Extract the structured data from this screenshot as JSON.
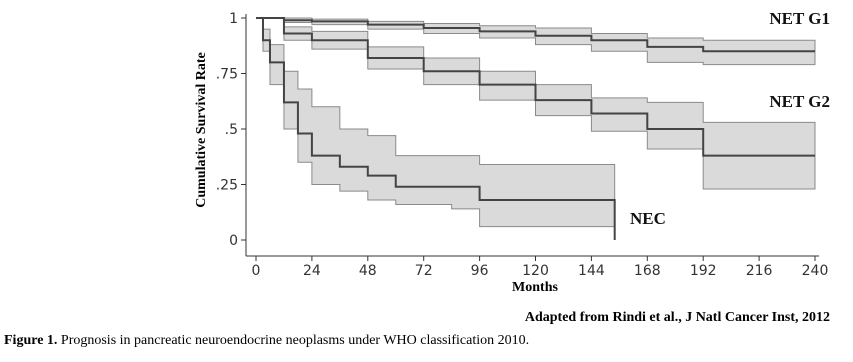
{
  "chart_data": {
    "type": "line",
    "step": "post",
    "ylabel": "Cumulative Survival Rate",
    "xlabel": "Months",
    "source": "Adapted from Rindi et al., J Natl Cancer Inst, 2012",
    "xlim": [
      0,
      240
    ],
    "ylim": [
      0,
      1
    ],
    "xticks": [
      0,
      24,
      48,
      72,
      96,
      120,
      144,
      168,
      192,
      216,
      240
    ],
    "yticks": [
      0,
      {
        "value": 0.25,
        "label": ".25"
      },
      {
        "value": 0.5,
        "label": ".5"
      },
      {
        "value": 0.75,
        "label": ".75"
      },
      1
    ],
    "band_color": "#d4d4d4",
    "series": [
      {
        "name": "NET G1",
        "color": "#444444",
        "x": [
          0,
          12,
          24,
          48,
          72,
          96,
          120,
          144,
          168,
          192,
          240
        ],
        "values": [
          1,
          0.99,
          0.985,
          0.97,
          0.955,
          0.94,
          0.92,
          0.9,
          0.87,
          0.85,
          0.85
        ],
        "lower": [
          1,
          0.98,
          0.97,
          0.95,
          0.93,
          0.91,
          0.88,
          0.85,
          0.8,
          0.79,
          0.79
        ],
        "upper": [
          1,
          1,
          0.995,
          0.985,
          0.975,
          0.965,
          0.955,
          0.93,
          0.91,
          0.9,
          0.9
        ]
      },
      {
        "name": "NET G2",
        "color": "#444444",
        "x": [
          0,
          12,
          24,
          48,
          72,
          96,
          120,
          144,
          168,
          192,
          240
        ],
        "values": [
          1,
          0.93,
          0.9,
          0.82,
          0.76,
          0.7,
          0.63,
          0.57,
          0.5,
          0.38,
          0.38
        ],
        "lower": [
          1,
          0.9,
          0.86,
          0.77,
          0.7,
          0.63,
          0.56,
          0.49,
          0.41,
          0.23,
          0.23
        ],
        "upper": [
          1,
          0.96,
          0.94,
          0.87,
          0.82,
          0.76,
          0.7,
          0.64,
          0.62,
          0.53,
          0.53
        ]
      },
      {
        "name": "NEC",
        "color": "#444444",
        "x": [
          0,
          3,
          6,
          12,
          18,
          24,
          36,
          48,
          60,
          84,
          96,
          154,
          154
        ],
        "values": [
          1,
          0.9,
          0.8,
          0.62,
          0.48,
          0.38,
          0.33,
          0.29,
          0.24,
          0.24,
          0.18,
          0.18,
          0
        ],
        "lower": [
          1,
          0.85,
          0.7,
          0.5,
          0.35,
          0.25,
          0.22,
          0.18,
          0.16,
          0.14,
          0.06,
          0.06,
          0.06
        ],
        "upper": [
          1,
          0.95,
          0.88,
          0.76,
          0.68,
          0.6,
          0.5,
          0.47,
          0.38,
          0.38,
          0.34,
          0.34,
          0.34
        ]
      }
    ]
  },
  "caption": {
    "label": "Figure 1.",
    "text": "Prognosis in pancreatic neuroendocrine neoplasms under WHO classification 2010."
  }
}
